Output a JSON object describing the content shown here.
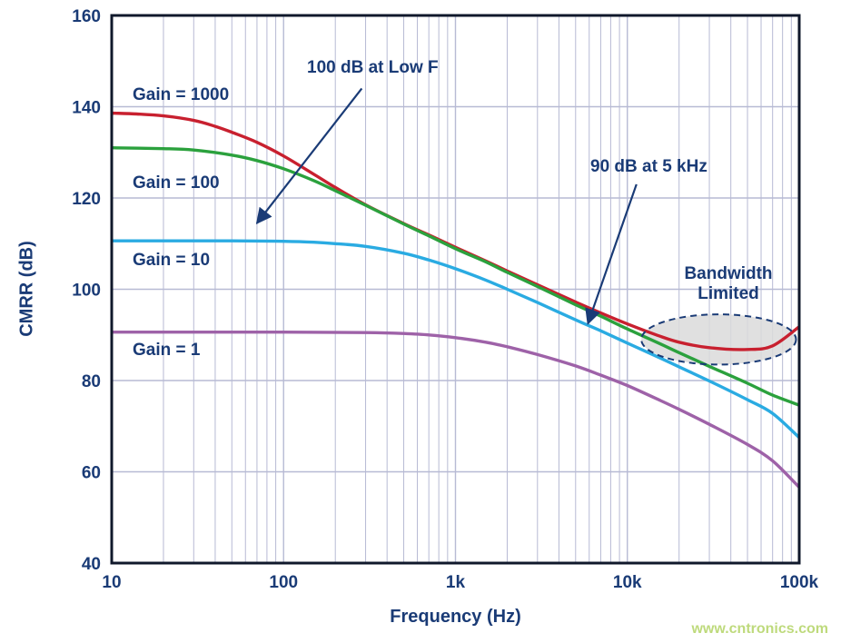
{
  "watermark": {
    "text": "www.cntronics.com",
    "color": "#a9ce51"
  },
  "chart_data": {
    "type": "line",
    "title": "",
    "xlabel": "Frequency (Hz)",
    "ylabel": "CMRR (dB)",
    "x_scale": "log",
    "xlim": [
      10,
      100000
    ],
    "ylim": [
      40,
      160
    ],
    "x_ticks": [
      {
        "v": 10,
        "label": "10"
      },
      {
        "v": 100,
        "label": "100"
      },
      {
        "v": 1000,
        "label": "1k"
      },
      {
        "v": 10000,
        "label": "10k"
      },
      {
        "v": 100000,
        "label": "100k"
      }
    ],
    "y_ticks": [
      {
        "v": 40,
        "label": "40"
      },
      {
        "v": 60,
        "label": "60"
      },
      {
        "v": 80,
        "label": "80"
      },
      {
        "v": 100,
        "label": "100"
      },
      {
        "v": 120,
        "label": "120"
      },
      {
        "v": 140,
        "label": "140"
      },
      {
        "v": 160,
        "label": "160"
      }
    ],
    "grid": {
      "color": "#b7bad4",
      "minor_x": true,
      "legend_position": "none"
    },
    "frame_color": "#10182b",
    "text_color": "#1a3b76",
    "series": [
      {
        "name": "Gain = 1000",
        "color": "#c8202f",
        "points": [
          [
            10,
            138.6
          ],
          [
            14,
            138.4
          ],
          [
            20,
            138.0
          ],
          [
            30,
            137.0
          ],
          [
            40,
            135.7
          ],
          [
            50,
            134.4
          ],
          [
            70,
            132.2
          ],
          [
            100,
            129.2
          ],
          [
            150,
            125.2
          ],
          [
            200,
            122.3
          ],
          [
            300,
            118.5
          ],
          [
            500,
            114.4
          ],
          [
            700,
            111.9
          ],
          [
            1000,
            109.2
          ],
          [
            1500,
            106.2
          ],
          [
            2000,
            104.0
          ],
          [
            3000,
            101.0
          ],
          [
            5000,
            97.2
          ],
          [
            7000,
            94.8
          ],
          [
            10000,
            92.4
          ],
          [
            15000,
            89.9
          ],
          [
            20000,
            88.4
          ],
          [
            30000,
            87.2
          ],
          [
            50000,
            86.8
          ],
          [
            70000,
            87.6
          ],
          [
            100000,
            91.8
          ]
        ]
      },
      {
        "name": "Gain = 100",
        "color": "#2ba13d",
        "points": [
          [
            10,
            131.0
          ],
          [
            20,
            130.8
          ],
          [
            30,
            130.5
          ],
          [
            50,
            129.4
          ],
          [
            70,
            128.2
          ],
          [
            100,
            126.4
          ],
          [
            150,
            123.8
          ],
          [
            200,
            121.6
          ],
          [
            300,
            118.4
          ],
          [
            500,
            114.3
          ],
          [
            700,
            111.7
          ],
          [
            1000,
            108.9
          ],
          [
            1500,
            106.0
          ],
          [
            2000,
            103.7
          ],
          [
            3000,
            100.6
          ],
          [
            5000,
            96.6
          ],
          [
            7000,
            94.1
          ],
          [
            10000,
            91.3
          ],
          [
            15000,
            88.3
          ],
          [
            20000,
            86.1
          ],
          [
            30000,
            83.1
          ],
          [
            50000,
            79.4
          ],
          [
            70000,
            76.8
          ],
          [
            100000,
            74.6
          ]
        ]
      },
      {
        "name": "Gain = 10",
        "color": "#2aabe2",
        "points": [
          [
            10,
            110.6
          ],
          [
            50,
            110.6
          ],
          [
            100,
            110.5
          ],
          [
            150,
            110.3
          ],
          [
            200,
            110.0
          ],
          [
            300,
            109.4
          ],
          [
            500,
            107.9
          ],
          [
            700,
            106.4
          ],
          [
            1000,
            104.5
          ],
          [
            1500,
            102.0
          ],
          [
            2000,
            100.0
          ],
          [
            3000,
            97.1
          ],
          [
            5000,
            93.3
          ],
          [
            7000,
            90.9
          ],
          [
            10000,
            88.2
          ],
          [
            15000,
            85.2
          ],
          [
            20000,
            83.0
          ],
          [
            30000,
            79.9
          ],
          [
            50000,
            75.8
          ],
          [
            70000,
            72.8
          ],
          [
            100000,
            67.5
          ]
        ]
      },
      {
        "name": "Gain = 1",
        "color": "#9e62a8",
        "points": [
          [
            10,
            90.6
          ],
          [
            100,
            90.6
          ],
          [
            300,
            90.5
          ],
          [
            500,
            90.3
          ],
          [
            700,
            90.0
          ],
          [
            1000,
            89.4
          ],
          [
            1500,
            88.4
          ],
          [
            2000,
            87.4
          ],
          [
            3000,
            85.7
          ],
          [
            5000,
            83.2
          ],
          [
            7000,
            81.2
          ],
          [
            10000,
            78.9
          ],
          [
            15000,
            75.9
          ],
          [
            20000,
            73.7
          ],
          [
            30000,
            70.4
          ],
          [
            50000,
            66.0
          ],
          [
            70000,
            62.4
          ],
          [
            100000,
            56.6
          ]
        ]
      }
    ],
    "annotations": [
      {
        "text": "100 dB at Low F",
        "arrow": {
          "from": [
            285,
            144
          ],
          "to": [
            70,
            114.5
          ]
        }
      },
      {
        "text": "90 dB at 5 kHz",
        "arrow": {
          "from": [
            11300,
            123
          ],
          "to": [
            5900,
            92.5
          ]
        }
      },
      {
        "text": "Bandwidth Limited",
        "arrow": null
      }
    ],
    "ellipse": {
      "cx": 34000,
      "cy": 89,
      "rx_decades": 0.45,
      "ry_db": 5.5,
      "fill": "#dadada",
      "stroke": "#1a3b76"
    }
  }
}
